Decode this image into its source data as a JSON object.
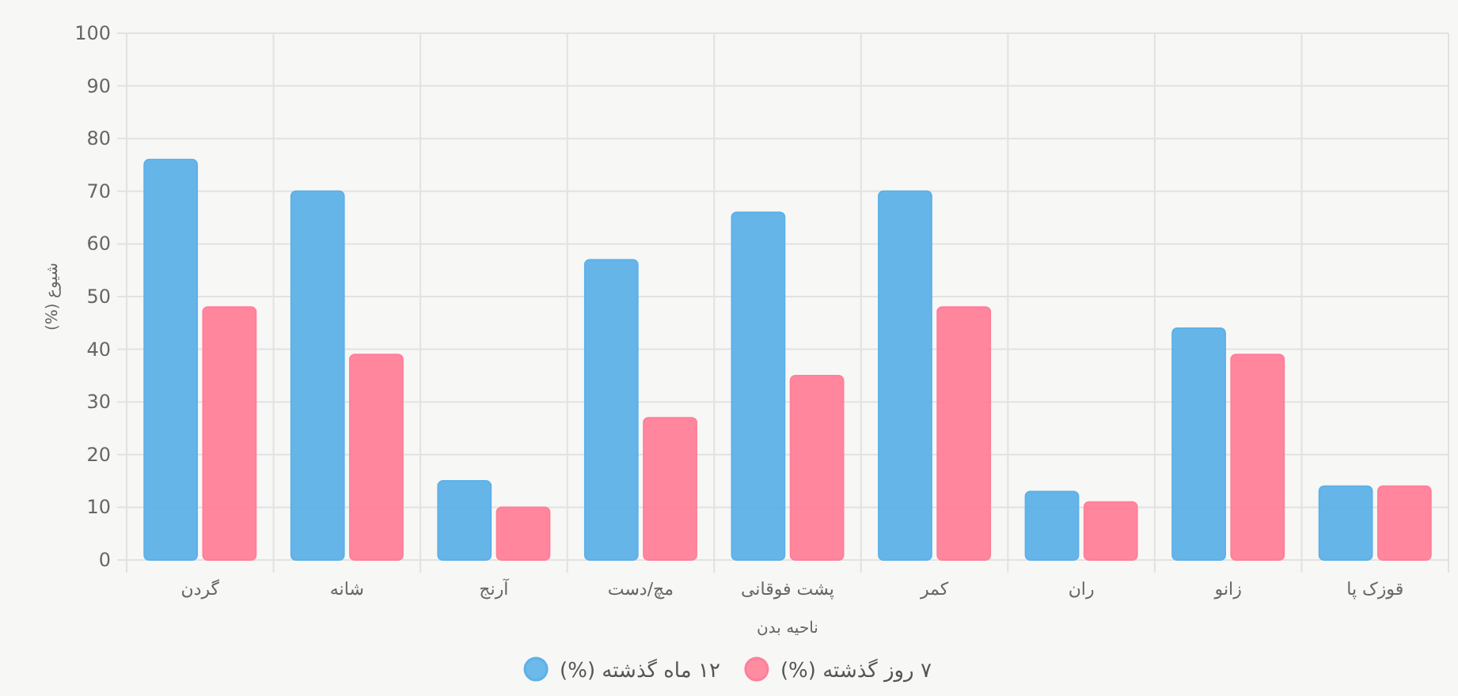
{
  "chart_data": {
    "type": "bar",
    "xlabel": "ناحیه بدن",
    "ylabel": "شیوع (%)",
    "categories": [
      "گردن",
      "شانه",
      "آرنج",
      "مچ/دست",
      "پشت فوقانی",
      "کمر",
      "ران",
      "زانو",
      "قوزک پا"
    ],
    "series": [
      {
        "name": "۱۲ ماه گذشته (%)",
        "color": "#5db1e8",
        "values": [
          76,
          70,
          15,
          57,
          66,
          70,
          13,
          44,
          14
        ]
      },
      {
        "name": "۷ روز گذشته (%)",
        "color": "#ff7f98",
        "values": [
          48,
          39,
          10,
          27,
          35,
          48,
          11,
          39,
          14
        ]
      }
    ],
    "ylim": [
      0,
      100
    ],
    "yticks": [
      0,
      10,
      20,
      30,
      40,
      50,
      60,
      70,
      80,
      90,
      100
    ],
    "grid": true,
    "legend": "bottom"
  }
}
